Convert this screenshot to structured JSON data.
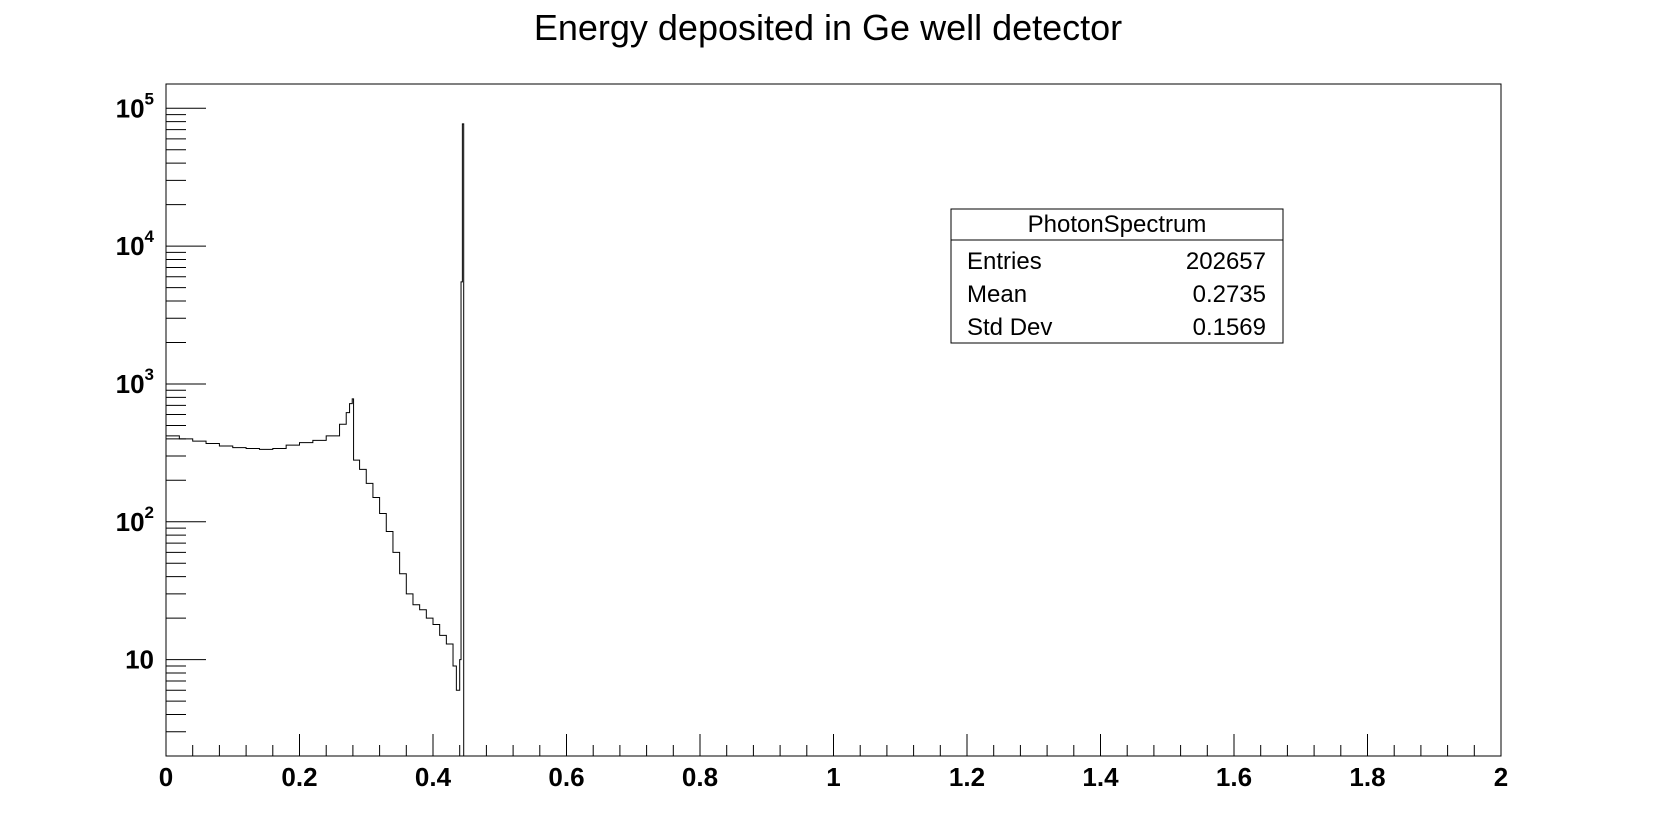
{
  "chart_data": {
    "type": "histogram",
    "title": "Energy deposited in Ge well detector",
    "xlabel": "",
    "ylabel": "",
    "xlim": [
      0,
      2
    ],
    "ylim": [
      2,
      150000
    ],
    "y_scale": "log",
    "x_ticks": [
      "0",
      "0.2",
      "0.4",
      "0.6",
      "0.8",
      "1",
      "1.2",
      "1.4",
      "1.6",
      "1.8",
      "2"
    ],
    "y_ticks": [
      {
        "base": "10",
        "exp": "5"
      },
      {
        "base": "10",
        "exp": "4"
      },
      {
        "base": "10",
        "exp": "3"
      },
      {
        "base": "10",
        "exp": "2"
      },
      {
        "base": "10",
        "exp": ""
      }
    ],
    "line_color": "#000000",
    "series": [
      {
        "x": [
          0.0,
          0.02,
          0.04,
          0.06,
          0.08,
          0.1,
          0.12,
          0.14,
          0.16,
          0.18,
          0.2,
          0.22,
          0.24,
          0.26,
          0.27,
          0.275,
          0.279,
          0.281,
          0.29,
          0.3,
          0.31,
          0.32,
          0.33,
          0.34,
          0.35,
          0.36,
          0.37,
          0.38,
          0.39,
          0.4,
          0.41,
          0.42,
          0.43,
          0.435,
          0.44,
          0.442,
          0.444,
          0.446,
          0.448
        ],
        "y": [
          420,
          400,
          385,
          370,
          355,
          345,
          340,
          335,
          340,
          360,
          375,
          390,
          420,
          510,
          620,
          720,
          780,
          280,
          240,
          190,
          150,
          115,
          85,
          60,
          42,
          30,
          25,
          23,
          20,
          18,
          15,
          13,
          9,
          6,
          10,
          5500,
          77000,
          0,
          0
        ]
      }
    ],
    "stats_box": {
      "name": "PhotonSpectrum",
      "rows": [
        {
          "label": "Entries",
          "value": "202657"
        },
        {
          "label": "Mean",
          "value": "0.2735"
        },
        {
          "label": "Std Dev",
          "value": "0.1569"
        }
      ]
    }
  }
}
